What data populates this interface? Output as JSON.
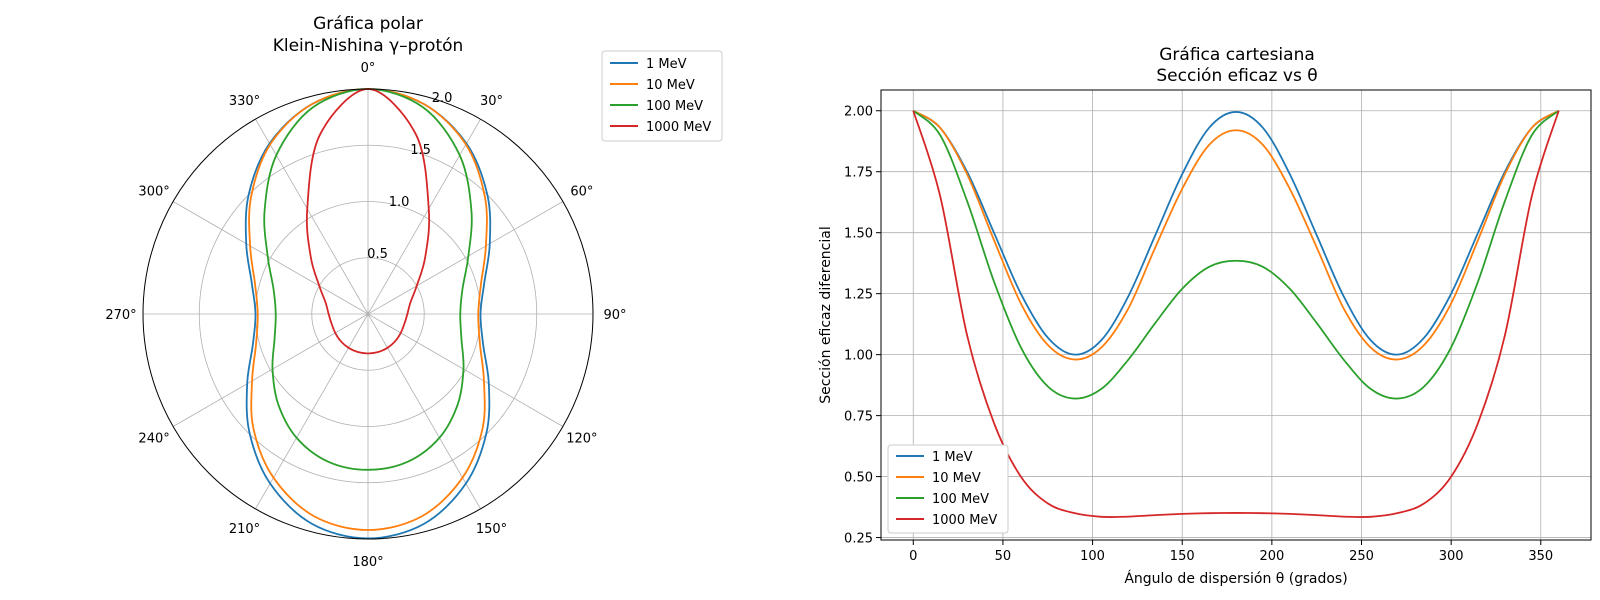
{
  "chart_data": [
    {
      "type": "line",
      "projection": "polar",
      "title": "Gráfica polar\nKlein-Nishina γ–protón",
      "title_lines": [
        "Gráfica polar",
        "Klein-Nishina γ–protón"
      ],
      "theta_zero": "top",
      "theta_direction": "clockwise",
      "theta_ticks": [
        "0°",
        "30°",
        "60°",
        "90°",
        "120°",
        "150°",
        "180°",
        "210°",
        "240°",
        "270°",
        "300°",
        "330°"
      ],
      "rlim": [
        0,
        2.0
      ],
      "r_ticks": [
        0.5,
        1.0,
        1.5,
        2.0
      ],
      "r_tick_labels": [
        "0.5",
        "1.0",
        "1.5",
        "2.0"
      ],
      "grid": true,
      "legend_position": "outside-top-right",
      "series": [
        {
          "name": "1 MeV",
          "color": "#1f77b4",
          "theta": [
            0,
            15,
            30,
            45,
            60,
            75,
            90,
            105,
            120,
            135,
            150,
            165,
            180,
            195,
            210,
            225,
            240,
            255,
            270,
            285,
            300,
            315,
            330,
            345,
            360
          ],
          "r": [
            2.0,
            1.93,
            1.75,
            1.5,
            1.25,
            1.07,
            1.0,
            1.06,
            1.24,
            1.49,
            1.74,
            1.93,
            1.995,
            1.93,
            1.74,
            1.49,
            1.24,
            1.06,
            1.0,
            1.07,
            1.25,
            1.5,
            1.75,
            1.93,
            2.0
          ]
        },
        {
          "name": "10 MeV",
          "color": "#ff7f0e",
          "theta": [
            0,
            15,
            30,
            45,
            60,
            75,
            90,
            105,
            120,
            135,
            150,
            165,
            180,
            195,
            210,
            225,
            240,
            255,
            270,
            285,
            300,
            315,
            330,
            345,
            360
          ],
          "r": [
            2.0,
            1.93,
            1.74,
            1.47,
            1.21,
            1.04,
            0.98,
            1.03,
            1.19,
            1.44,
            1.68,
            1.86,
            1.92,
            1.86,
            1.68,
            1.44,
            1.19,
            1.03,
            0.98,
            1.04,
            1.21,
            1.47,
            1.74,
            1.93,
            2.0
          ]
        },
        {
          "name": "100 MeV",
          "color": "#2ca02c",
          "theta": [
            0,
            15,
            30,
            45,
            60,
            75,
            90,
            105,
            120,
            135,
            150,
            165,
            180,
            195,
            210,
            225,
            240,
            255,
            270,
            285,
            300,
            315,
            330,
            345,
            360
          ],
          "r": [
            2.0,
            1.9,
            1.63,
            1.3,
            1.03,
            0.87,
            0.82,
            0.86,
            0.98,
            1.13,
            1.27,
            1.36,
            1.385,
            1.36,
            1.27,
            1.13,
            0.98,
            0.86,
            0.82,
            0.87,
            1.03,
            1.3,
            1.63,
            1.9,
            2.0
          ]
        },
        {
          "name": "1000 MeV",
          "color": "#d62728",
          "theta": [
            0,
            15,
            30,
            45,
            60,
            75,
            90,
            105,
            120,
            135,
            150,
            165,
            180,
            195,
            210,
            225,
            240,
            255,
            270,
            285,
            300,
            315,
            330,
            345,
            360
          ],
          "r": [
            2.0,
            1.65,
            1.08,
            0.72,
            0.5,
            0.39,
            0.35,
            0.335,
            0.336,
            0.342,
            0.347,
            0.35,
            0.351,
            0.35,
            0.347,
            0.342,
            0.336,
            0.335,
            0.35,
            0.39,
            0.5,
            0.72,
            1.08,
            1.65,
            2.0
          ]
        }
      ]
    },
    {
      "type": "line",
      "title": "Gráfica cartesiana\nSección eficaz vs θ",
      "title_lines": [
        "Gráfica cartesiana",
        "Sección eficaz vs θ"
      ],
      "xlabel": "Ángulo de dispersión θ (grados)",
      "ylabel": "Sección eficaz diferencial",
      "xlim": [
        -18,
        378
      ],
      "ylim": [
        0.24,
        2.085
      ],
      "x_ticks": [
        0,
        50,
        100,
        150,
        200,
        250,
        300,
        350
      ],
      "x_tick_labels": [
        "0",
        "50",
        "100",
        "150",
        "200",
        "250",
        "300",
        "350"
      ],
      "y_ticks": [
        0.25,
        0.5,
        0.75,
        1.0,
        1.25,
        1.5,
        1.75,
        2.0
      ],
      "y_tick_labels": [
        "0.25",
        "0.50",
        "0.75",
        "1.00",
        "1.25",
        "1.50",
        "1.75",
        "2.00"
      ],
      "grid": true,
      "legend_position": "lower-left",
      "series": [
        {
          "name": "1 MeV",
          "color": "#1f77b4",
          "x": [
            0,
            15,
            30,
            45,
            60,
            75,
            90,
            105,
            120,
            135,
            150,
            165,
            180,
            195,
            210,
            225,
            240,
            255,
            270,
            285,
            300,
            315,
            330,
            345,
            360
          ],
          "y": [
            2.0,
            1.93,
            1.75,
            1.5,
            1.25,
            1.07,
            1.0,
            1.06,
            1.24,
            1.49,
            1.74,
            1.93,
            1.995,
            1.93,
            1.74,
            1.49,
            1.24,
            1.06,
            1.0,
            1.07,
            1.25,
            1.5,
            1.75,
            1.93,
            2.0
          ]
        },
        {
          "name": "10 MeV",
          "color": "#ff7f0e",
          "x": [
            0,
            15,
            30,
            45,
            60,
            75,
            90,
            105,
            120,
            135,
            150,
            165,
            180,
            195,
            210,
            225,
            240,
            255,
            270,
            285,
            300,
            315,
            330,
            345,
            360
          ],
          "y": [
            2.0,
            1.93,
            1.74,
            1.47,
            1.21,
            1.04,
            0.98,
            1.03,
            1.19,
            1.44,
            1.68,
            1.86,
            1.92,
            1.86,
            1.68,
            1.44,
            1.19,
            1.03,
            0.98,
            1.04,
            1.21,
            1.47,
            1.74,
            1.93,
            2.0
          ]
        },
        {
          "name": "100 MeV",
          "color": "#2ca02c",
          "x": [
            0,
            15,
            30,
            45,
            60,
            75,
            90,
            105,
            120,
            135,
            150,
            165,
            180,
            195,
            210,
            225,
            240,
            255,
            270,
            285,
            300,
            315,
            330,
            345,
            360
          ],
          "y": [
            2.0,
            1.9,
            1.63,
            1.3,
            1.03,
            0.87,
            0.82,
            0.86,
            0.98,
            1.13,
            1.27,
            1.36,
            1.385,
            1.36,
            1.27,
            1.13,
            0.98,
            0.86,
            0.82,
            0.87,
            1.03,
            1.3,
            1.63,
            1.9,
            2.0
          ]
        },
        {
          "name": "1000 MeV",
          "color": "#d62728",
          "x": [
            0,
            15,
            30,
            45,
            60,
            75,
            90,
            105,
            120,
            135,
            150,
            165,
            180,
            195,
            210,
            225,
            240,
            255,
            270,
            285,
            300,
            315,
            330,
            345,
            360
          ],
          "y": [
            2.0,
            1.65,
            1.08,
            0.72,
            0.5,
            0.39,
            0.35,
            0.335,
            0.336,
            0.342,
            0.347,
            0.35,
            0.351,
            0.35,
            0.347,
            0.342,
            0.336,
            0.335,
            0.35,
            0.39,
            0.5,
            0.72,
            1.08,
            1.65,
            2.0
          ]
        }
      ]
    }
  ]
}
